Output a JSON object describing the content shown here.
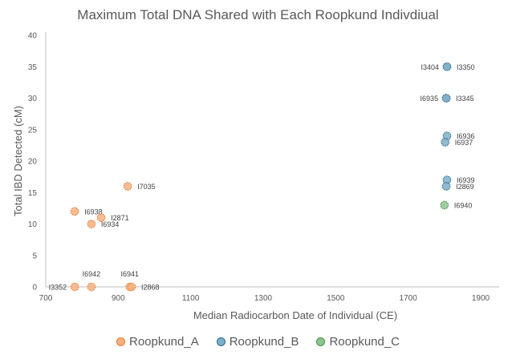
{
  "chart_data": {
    "type": "scatter",
    "title": "Maximum Total DNA Shared with Each Roopkund Indivdiual",
    "xlabel": "Median Radiocarbon Date of Individual (CE)",
    "ylabel": "Total IBD Detected (cM)",
    "xlim": [
      700,
      1900
    ],
    "ylim": [
      0,
      40
    ],
    "xticks": [
      700,
      900,
      1100,
      1300,
      1500,
      1700,
      1900
    ],
    "yticks": [
      0,
      5,
      10,
      15,
      20,
      25,
      30,
      35,
      40
    ],
    "grid": false,
    "legend_position": "bottom",
    "series": [
      {
        "name": "Roopkund_A",
        "color": "#F4B183",
        "edge": "#ED7D31",
        "points": [
          {
            "x": 780,
            "y": 0,
            "label": "I3352",
            "label_pos": "left"
          },
          {
            "x": 826,
            "y": 0,
            "label": "I6942",
            "label_pos": "above"
          },
          {
            "x": 932,
            "y": 0,
            "label": "I6941",
            "label_pos": "above"
          },
          {
            "x": 937,
            "y": 0,
            "label": "I2868",
            "label_pos": "right"
          },
          {
            "x": 780,
            "y": 12,
            "label": "I6938",
            "label_pos": "right"
          },
          {
            "x": 853,
            "y": 11,
            "label": "I2871",
            "label_pos": "right"
          },
          {
            "x": 826,
            "y": 10,
            "label": "I6934",
            "label_pos": "right"
          },
          {
            "x": 926,
            "y": 16,
            "label": "I7035",
            "label_pos": "right"
          }
        ]
      },
      {
        "name": "Roopkund_B",
        "color": "#7FAFC8",
        "edge": "#2E6B8F",
        "points": [
          {
            "x": 1807,
            "y": 35,
            "label": "I3404",
            "label_pos": "left"
          },
          {
            "x": 1807,
            "y": 35,
            "label": "I3350",
            "label_pos": "right"
          },
          {
            "x": 1805,
            "y": 30,
            "label": "I6935",
            "label_pos": "left"
          },
          {
            "x": 1805,
            "y": 30,
            "label": "I3345",
            "label_pos": "right"
          },
          {
            "x": 1807,
            "y": 24,
            "label": "I6936",
            "label_pos": "right"
          },
          {
            "x": 1802,
            "y": 23,
            "label": "I6937",
            "label_pos": "right"
          },
          {
            "x": 1807,
            "y": 17,
            "label": "I6939",
            "label_pos": "right"
          },
          {
            "x": 1805,
            "y": 16,
            "label": "I2869",
            "label_pos": "right"
          }
        ]
      },
      {
        "name": "Roopkund_C",
        "color": "#8FC48F",
        "edge": "#4E8F4E",
        "points": [
          {
            "x": 1800,
            "y": 13,
            "label": "I6940",
            "label_pos": "right"
          }
        ]
      }
    ]
  }
}
